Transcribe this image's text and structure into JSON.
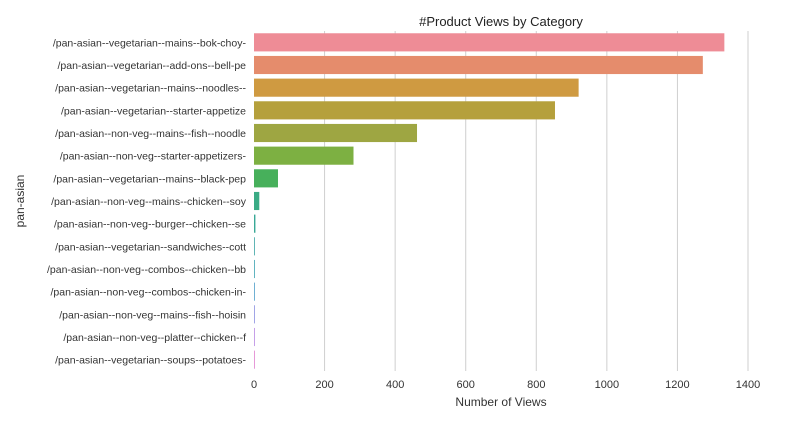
{
  "chart_data": {
    "type": "bar",
    "orientation": "horizontal",
    "title": "#Product Views by Category",
    "xlabel": "Number of Views",
    "ylabel": "pan-asian",
    "xlim": [
      0,
      1400
    ],
    "xticks": [
      0,
      200,
      400,
      600,
      800,
      1000,
      1200,
      1400
    ],
    "grid": true,
    "categories": [
      "/pan-asian--vegetarian--mains--bok-choy-",
      "/pan-asian--vegetarian--add-ons--bell-pe",
      "/pan-asian--vegetarian--mains--noodles--",
      "/pan-asian--vegetarian--starter-appetize",
      "/pan-asian--non-veg--mains--fish--noodle",
      "/pan-asian--non-veg--starter-appetizers-",
      "/pan-asian--vegetarian--mains--black-pep",
      "/pan-asian--non-veg--mains--chicken--soy",
      "/pan-asian--non-veg--burger--chicken--se",
      "/pan-asian--vegetarian--sandwiches--cott",
      "/pan-asian--non-veg--combos--chicken--bb",
      "/pan-asian--non-veg--combos--chicken-in-",
      "/pan-asian--non-veg--mains--fish--hoisin",
      "/pan-asian--non-veg--platter--chicken--f",
      "/pan-asian--vegetarian--soups--potatoes-"
    ],
    "values": [
      1333,
      1272,
      920,
      853,
      462,
      282,
      68,
      15,
      4,
      2,
      1,
      1,
      1,
      1,
      1
    ],
    "colors": [
      "#ee8c96",
      "#e58c6c",
      "#cf9a41",
      "#b5a03c",
      "#9ea642",
      "#7db042",
      "#47b05b",
      "#3aab85",
      "#39a896",
      "#3aa3a3",
      "#3ca2b0",
      "#4c9cc8",
      "#8a8fe0",
      "#b889e2",
      "#df80cf"
    ]
  }
}
